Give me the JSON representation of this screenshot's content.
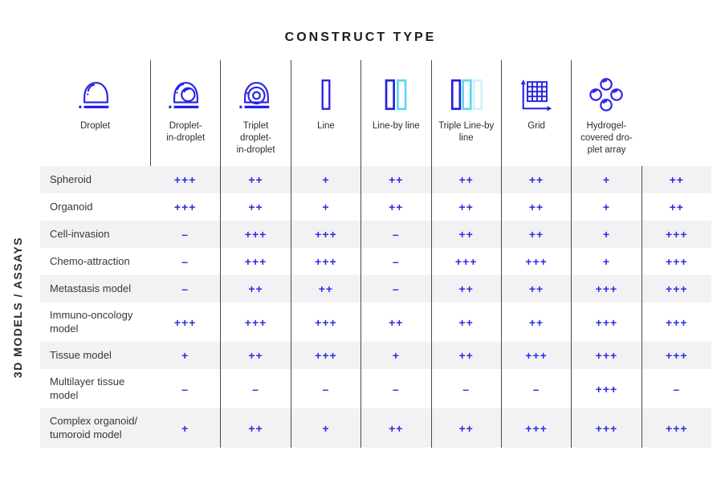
{
  "title": "CONSTRUCT  TYPE",
  "side_label": "3D MODELS / ASSAYS",
  "colors": {
    "accent_blue": "#2621e3",
    "value_blue": "#2f2ae4",
    "cyan": "#5cd9ea",
    "pale_cyan": "#d2f1f7",
    "row_band": "#f2f2f4",
    "divider": "#4a4a4c"
  },
  "chart_data": {
    "type": "table",
    "title": "CONSTRUCT TYPE",
    "row_axis_label": "3D MODELS / ASSAYS",
    "rating_scale": [
      "–",
      "+",
      "++",
      "+++"
    ],
    "columns": [
      {
        "label": "Droplet",
        "icon": "droplet-icon"
      },
      {
        "label": "Droplet-\nin-droplet",
        "icon": "droplet-in-droplet-icon"
      },
      {
        "label": "Triplet\ndroplet-\nin-droplet",
        "icon": "triplet-droplet-in-droplet-icon"
      },
      {
        "label": "Line",
        "icon": "line-icon"
      },
      {
        "label": "Line-by line",
        "icon": "line-by-line-icon"
      },
      {
        "label": "Triple Line-by\nline",
        "icon": "triple-line-by-line-icon"
      },
      {
        "label": "Grid",
        "icon": "grid-icon"
      },
      {
        "label": "Hydrogel-\ncovered dro-\nplet array",
        "icon": "hydrogel-covered-droplet-array-icon"
      }
    ],
    "rows": [
      {
        "label": "Spheroid",
        "values": [
          "+++",
          "++",
          "+",
          "++",
          "++",
          "++",
          "+",
          "++"
        ]
      },
      {
        "label": "Organoid",
        "values": [
          "+++",
          "++",
          "+",
          "++",
          "++",
          "++",
          "+",
          "++"
        ]
      },
      {
        "label": "Cell-invasion",
        "values": [
          "–",
          "+++",
          "+++",
          "–",
          "++",
          "++",
          "+",
          "+++"
        ]
      },
      {
        "label": "Chemo-attraction",
        "values": [
          "–",
          "+++",
          "+++",
          "–",
          "+++",
          "+++",
          "+",
          "+++"
        ]
      },
      {
        "label": "Metastasis model",
        "values": [
          "–",
          "++",
          "++",
          "–",
          "++",
          "++",
          "+++",
          "+++"
        ]
      },
      {
        "label": "Immuno-oncology\nmodel",
        "values": [
          "+++",
          "+++",
          "+++",
          "++",
          "++",
          "++",
          "+++",
          "+++"
        ]
      },
      {
        "label": "Tissue model",
        "values": [
          "+",
          "++",
          "+++",
          "+",
          "++",
          "+++",
          "+++",
          "+++"
        ]
      },
      {
        "label": "Multilayer tissue\nmodel",
        "values": [
          "–",
          "–",
          "–",
          "–",
          "–",
          "–",
          "+++",
          "–"
        ]
      },
      {
        "label": "Complex organoid/\ntumoroid model",
        "values": [
          "+",
          "++",
          "+",
          "++",
          "++",
          "+++",
          "+++",
          "+++"
        ]
      }
    ]
  }
}
